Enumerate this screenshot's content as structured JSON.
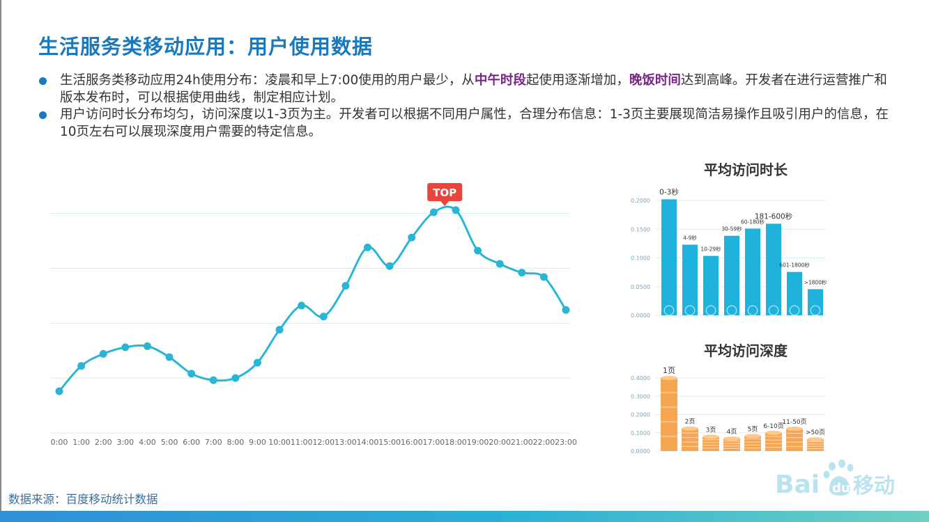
{
  "slide": {
    "title": "生活服务类移动应用：用户使用数据",
    "bullets": [
      {
        "parts": [
          {
            "text": "生活服务类移动应用24h使用分布：凌晨和早上7:00使用的用户最少，从",
            "highlight": false
          },
          {
            "text": "中午时段",
            "highlight": true
          },
          {
            "text": "起使用逐渐增加，",
            "highlight": false
          },
          {
            "text": "晚饭时间",
            "highlight": true
          },
          {
            "text": "达到高峰。开发者在进行运营推广和版本发布时，可以根据使用曲线，制定相应计划。",
            "highlight": false
          }
        ]
      },
      {
        "parts": [
          {
            "text": "用户访问时长分布均匀，访问深度以1-3页为主。开发者可以根据不同用户属性，合理分布信息：1-3页主要展现简洁易操作且吸引用户的信息，在10页左右可以展现深度用户需要的特定信息。",
            "highlight": false
          }
        ]
      }
    ],
    "source_note": "数据来源：百度移动统计数据",
    "logo_text": "Baidu移动",
    "colors": {
      "title": "#1a78bd",
      "highlight": "#7a2587",
      "line": "#29b6d4",
      "duration_bars": "#1fb2dc",
      "depth_bars": "#f6a552",
      "top_marker": "#e8453c"
    }
  },
  "chart_data": [
    {
      "type": "line",
      "title": "",
      "marker_label": "TOP",
      "marker_at": "17:00-18:00",
      "x": [
        "0:00",
        "1:00",
        "2:00",
        "3:00",
        "4:00",
        "5:00",
        "6:00",
        "7:00",
        "8:00",
        "9:00",
        "10:00",
        "11:00",
        "12:00",
        "13:00",
        "14:00",
        "15:00",
        "16:00",
        "17:00",
        "18:00",
        "19:00",
        "20:00",
        "21:00",
        "22:00",
        "23:00"
      ],
      "y": [
        3.8,
        6.1,
        7.2,
        7.8,
        7.9,
        6.9,
        5.4,
        4.8,
        5.0,
        6.4,
        9.4,
        11.6,
        10.6,
        13.4,
        16.9,
        15.2,
        17.8,
        20.1,
        20.3,
        16.6,
        15.4,
        14.6,
        14.2,
        11.2
      ],
      "ylim": [
        0,
        22
      ],
      "y_hidden": true,
      "grid": true
    },
    {
      "type": "bar",
      "title": "平均访问时长",
      "categories": [
        "0-3秒",
        "4-9秒",
        "10-29秒",
        "30-59秒",
        "60-180秒",
        "181-600秒",
        "601-1800秒",
        ">1800秒"
      ],
      "values": [
        0.202,
        0.123,
        0.1035,
        0.1385,
        0.151,
        0.1595,
        0.0755,
        0.0455
      ],
      "ylim": [
        0,
        0.2
      ],
      "yticks": [
        "0.2000",
        "0.1500",
        "0.1000",
        "0.0500",
        "0.0000"
      ],
      "grid": true
    },
    {
      "type": "bar",
      "title": "平均访问深度",
      "categories": [
        "1页",
        "2页",
        "3页",
        "4页",
        "5页",
        "6-10页",
        "11-50页",
        ">50页"
      ],
      "values": [
        0.4,
        0.123,
        0.078,
        0.068,
        0.082,
        0.1,
        0.122,
        0.064
      ],
      "ylim": [
        0,
        0.4
      ],
      "yticks": [
        "0.4000",
        "0.3000",
        "0.2000",
        "0.1000",
        "0.0000"
      ],
      "grid": true
    }
  ]
}
